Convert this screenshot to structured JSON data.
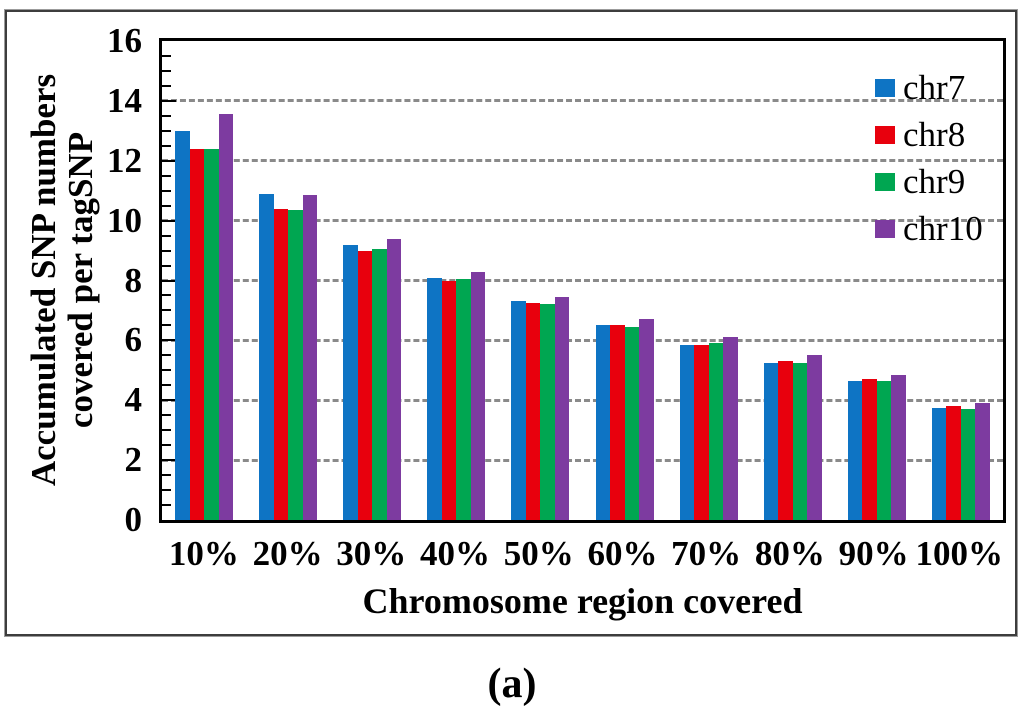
{
  "figure": {
    "caption": "(a)"
  },
  "chart_data": {
    "type": "bar",
    "title": "",
    "xlabel": "Chromosome region covered",
    "ylabel": "Accumulated  SNP numbers\ncovered per tagSNP",
    "categories": [
      "10%",
      "20%",
      "30%",
      "40%",
      "50%",
      "60%",
      "70%",
      "80%",
      "90%",
      "100%"
    ],
    "series": [
      {
        "name": "chr7",
        "color": "#0E74C4",
        "values": [
          13.0,
          10.9,
          9.2,
          8.1,
          7.3,
          6.5,
          5.85,
          5.25,
          4.65,
          3.75
        ]
      },
      {
        "name": "chr8",
        "color": "#E8000D",
        "values": [
          12.4,
          10.4,
          9.0,
          8.0,
          7.25,
          6.5,
          5.85,
          5.3,
          4.7,
          3.8
        ]
      },
      {
        "name": "chr9",
        "color": "#00A651",
        "values": [
          12.4,
          10.35,
          9.05,
          8.05,
          7.2,
          6.45,
          5.9,
          5.25,
          4.65,
          3.7
        ]
      },
      {
        "name": "chr10",
        "color": "#7D3BA0",
        "values": [
          13.55,
          10.85,
          9.4,
          8.3,
          7.45,
          6.7,
          6.1,
          5.5,
          4.85,
          3.9
        ]
      }
    ],
    "ylim": [
      0,
      16
    ],
    "y_ticks": [
      0,
      2,
      4,
      6,
      8,
      10,
      12,
      14,
      16
    ],
    "y_minor_tick_step": 0.5,
    "gridlines": [
      2,
      4,
      6,
      8,
      10,
      12,
      14
    ],
    "grid_style": "dashed",
    "grid_color": "#8a8a8a",
    "axis_color": "#000000",
    "legend_position": "top-right-inside"
  }
}
